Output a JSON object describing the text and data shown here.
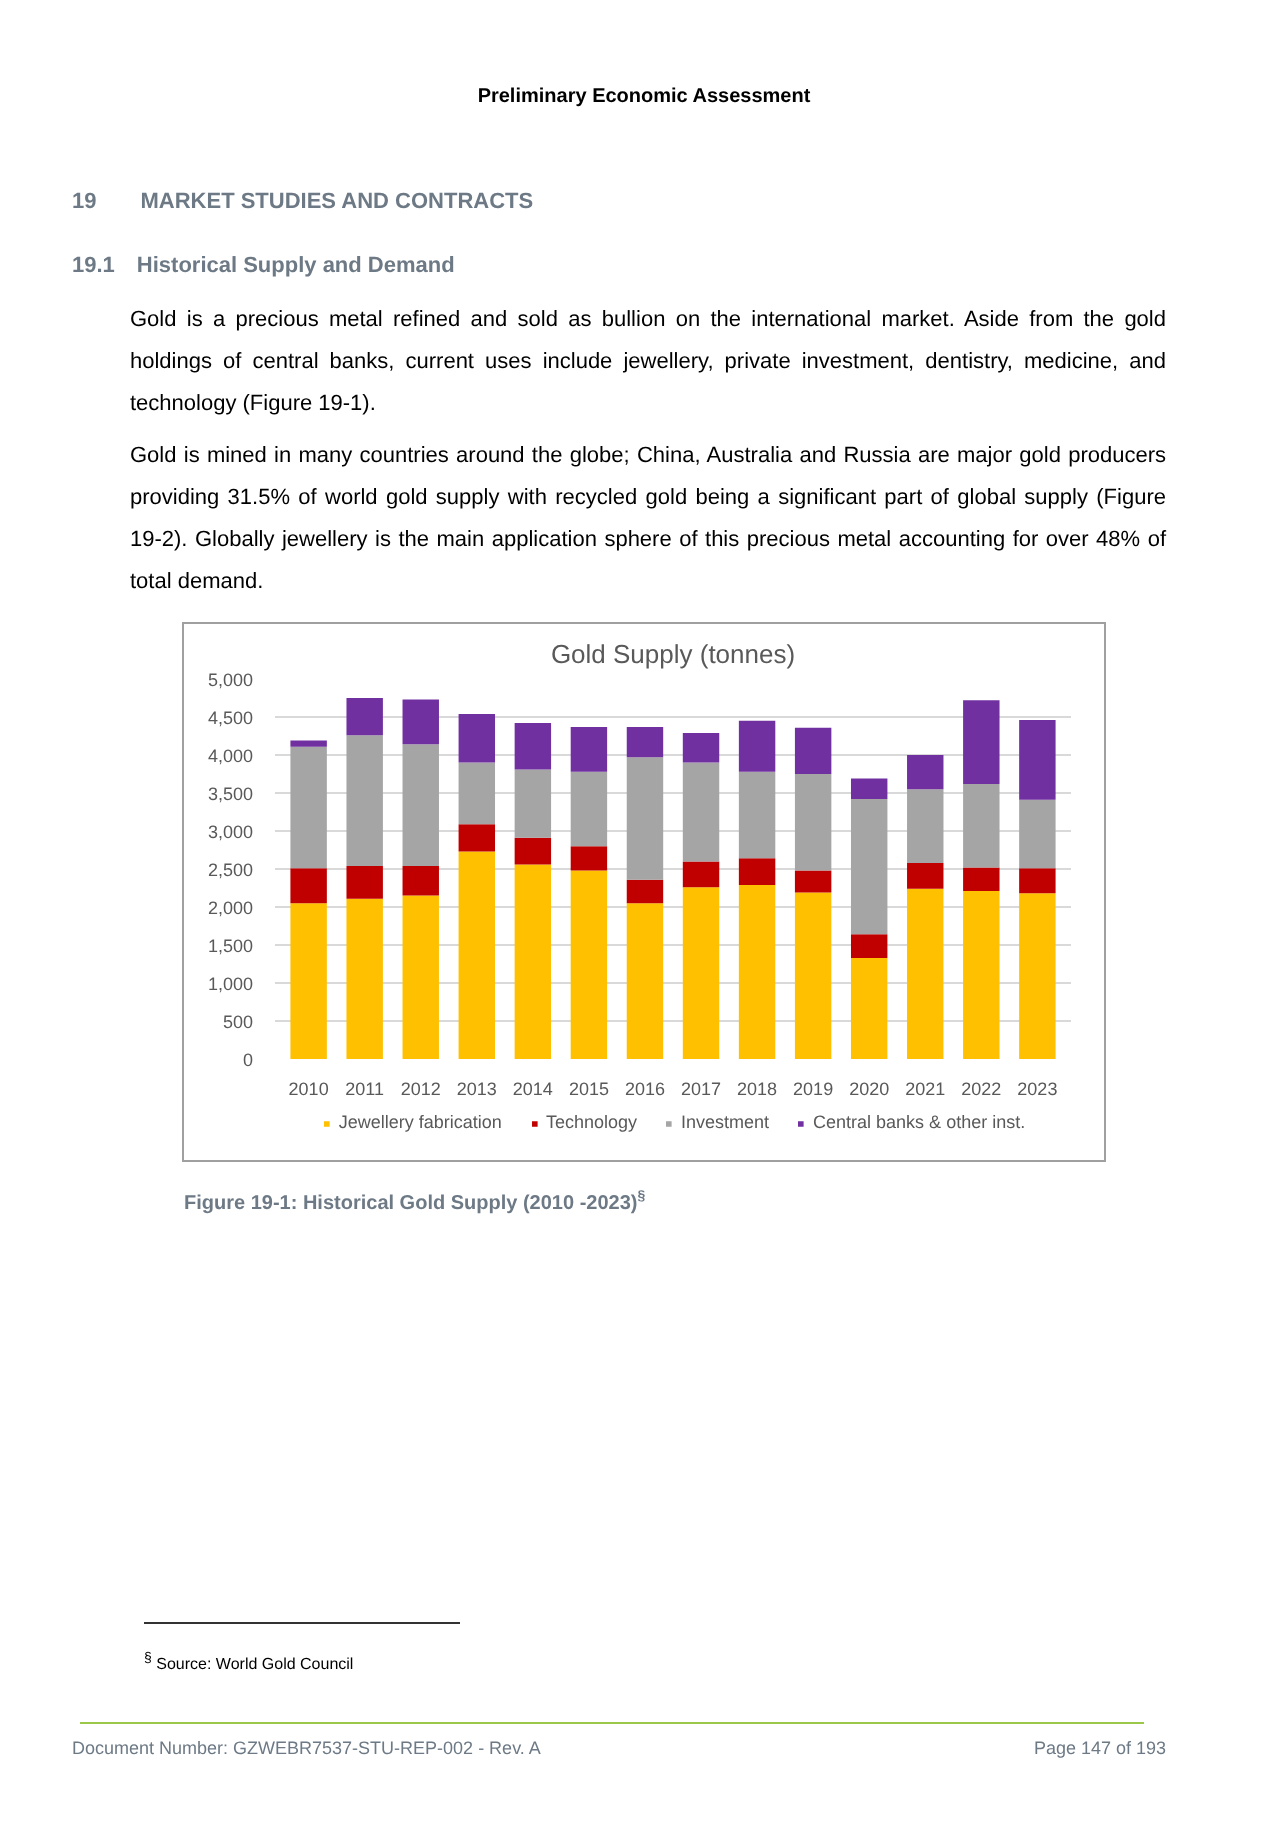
{
  "chart_data": {
    "type": "bar",
    "title": "Gold Supply (tonnes)",
    "stacked": true,
    "categories": [
      "2010",
      "2011",
      "2012",
      "2013",
      "2014",
      "2015",
      "2016",
      "2017",
      "2018",
      "2019",
      "2020",
      "2021",
      "2022",
      "2023"
    ],
    "series": [
      {
        "name": "Jewellery fabrication",
        "color": "#ffc000",
        "values": [
          2050,
          2110,
          2150,
          2730,
          2560,
          2480,
          2050,
          2260,
          2290,
          2190,
          1330,
          2240,
          2210,
          2180
        ]
      },
      {
        "name": "Technology",
        "color": "#c00000",
        "values": [
          460,
          430,
          390,
          360,
          350,
          320,
          310,
          340,
          350,
          290,
          310,
          340,
          310,
          330
        ]
      },
      {
        "name": "Investment",
        "color": "#a5a5a5",
        "values": [
          1600,
          1720,
          1600,
          810,
          900,
          980,
          1610,
          1300,
          1140,
          1270,
          1780,
          970,
          1100,
          900
        ]
      },
      {
        "name": "Central banks & other inst.",
        "color": "#7030a0",
        "values": [
          80,
          490,
          590,
          640,
          610,
          590,
          400,
          390,
          670,
          610,
          270,
          450,
          1100,
          1050
        ]
      }
    ],
    "ylim": [
      0,
      5000
    ],
    "yticks": [
      {
        "value": 0,
        "label": "0"
      },
      {
        "value": 500,
        "label": "500"
      },
      {
        "value": 1000,
        "label": "1,000"
      },
      {
        "value": 1500,
        "label": "1,500"
      },
      {
        "value": 2000,
        "label": "2,000"
      },
      {
        "value": 2500,
        "label": "2,500"
      },
      {
        "value": 3000,
        "label": "3,000"
      },
      {
        "value": 3500,
        "label": "3,500"
      },
      {
        "value": 4000,
        "label": "4,000"
      },
      {
        "value": 4500,
        "label": "4,500"
      },
      {
        "value": 5000,
        "label": "5,000"
      }
    ],
    "grid": "y",
    "legend": "bottom",
    "annotations": [
      "Preliminary Economic Assessment",
      "19  MARKET STUDIES AND CONTRACTS",
      "19.1 Historical Supply and Demand",
      "Gold is a precious metal refined and sold as bullion on the international market. Aside from the gold holdings of central banks, current uses include jewellery, private investment, dentistry, medicine, and technology (Figure 19-1).",
      "Gold is mined in many countries around the globe; China, Australia and Russia are major gold producers providing 31.5% of world gold supply with recycled gold being a significant part of global supply (Figure 19-2). Globally jewellery is the main application sphere of this precious metal accounting for over 48% of total demand.",
      "Figure 19-1: Historical Gold Supply (2010 -2023)$^{§}$",
      "$^{§}$ Source: World Gold Council",
      "Document Number: GZWEBR7537-STU-REP-002 - Rev. A",
      "Page 147 of 193"
    ]
  }
}
